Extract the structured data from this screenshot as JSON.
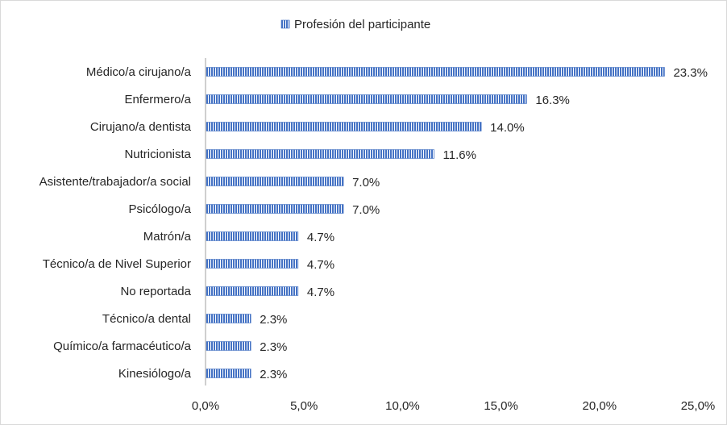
{
  "chart_data": {
    "type": "bar",
    "orientation": "horizontal",
    "categories": [
      "Médico/a cirujano/a",
      "Enfermero/a",
      "Cirujano/a dentista",
      "Nutricionista",
      "Asistente/trabajador/a social",
      "Psicólogo/a",
      "Matrón/a",
      "Técnico/a de Nivel Superior",
      "No reportada",
      "Técnico/a dental",
      "Químico/a farmacéutico/a",
      "Kinesiólogo/a"
    ],
    "series": [
      {
        "name": "Profesión del participante",
        "values": [
          23.3,
          16.3,
          14.0,
          11.6,
          7.0,
          7.0,
          4.7,
          4.7,
          4.7,
          2.3,
          2.3,
          2.3
        ],
        "value_labels": [
          "23.3%",
          "16.3%",
          "14.0%",
          "11.6%",
          "7.0%",
          "7.0%",
          "4.7%",
          "4.7%",
          "4.7%",
          "2.3%",
          "2.3%",
          "2.3%"
        ],
        "color": "#4472c4",
        "pattern": "vertical-stripes"
      }
    ],
    "xlim": [
      0,
      25
    ],
    "x_ticks": [
      0,
      5,
      10,
      15,
      20,
      25
    ],
    "x_tick_labels": [
      "0,0%",
      "5,0%",
      "10,0%",
      "15,0%",
      "20,0%",
      "25,0%"
    ],
    "grid": false,
    "legend_position": "top-center",
    "axis_color": "#bfbfbf",
    "text_color": "#262626"
  }
}
